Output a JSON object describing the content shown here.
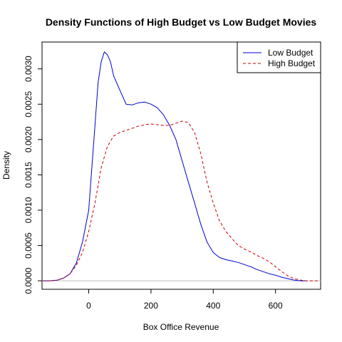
{
  "chart_data": {
    "type": "line",
    "title": "Density Functions of High Budget vs Low Budget Movies",
    "xlabel": "Box Office Revenue",
    "ylabel": "Density",
    "xlim": [
      -150,
      745
    ],
    "ylim": [
      -0.00012,
      0.00338
    ],
    "x_ticks": [
      0,
      200,
      400,
      600
    ],
    "x_tick_labels": [
      "0",
      "200",
      "400",
      "600"
    ],
    "y_ticks": [
      0.0,
      0.0005,
      0.001,
      0.0015,
      0.002,
      0.0025,
      0.003
    ],
    "y_tick_labels": [
      "0.0000",
      "0.0005",
      "0.0010",
      "0.0015",
      "0.0020",
      "0.0025",
      "0.0030"
    ],
    "grid": false,
    "baseline": 0,
    "legend_position": "top-right",
    "series": [
      {
        "name": "Low Budget",
        "color": "#0000cc",
        "dash": "solid",
        "points": [
          [
            -148,
            0.0
          ],
          [
            -125,
            0.0
          ],
          [
            -100,
            1e-05
          ],
          [
            -80,
            4e-05
          ],
          [
            -60,
            0.0001
          ],
          [
            -40,
            0.00025
          ],
          [
            -20,
            0.00055
          ],
          [
            0,
            0.001
          ],
          [
            10,
            0.0016
          ],
          [
            20,
            0.0022
          ],
          [
            30,
            0.0028
          ],
          [
            40,
            0.0031
          ],
          [
            50,
            0.00324
          ],
          [
            60,
            0.0032
          ],
          [
            70,
            0.0031
          ],
          [
            80,
            0.0029
          ],
          [
            100,
            0.0027
          ],
          [
            120,
            0.0025
          ],
          [
            140,
            0.00249
          ],
          [
            160,
            0.00252
          ],
          [
            180,
            0.00253
          ],
          [
            200,
            0.0025
          ],
          [
            220,
            0.00245
          ],
          [
            240,
            0.00235
          ],
          [
            260,
            0.0022
          ],
          [
            280,
            0.002
          ],
          [
            300,
            0.0017
          ],
          [
            320,
            0.0014
          ],
          [
            340,
            0.0011
          ],
          [
            360,
            0.0008
          ],
          [
            380,
            0.00055
          ],
          [
            400,
            0.0004
          ],
          [
            420,
            0.00033
          ],
          [
            440,
            0.0003
          ],
          [
            460,
            0.00028
          ],
          [
            480,
            0.00026
          ],
          [
            500,
            0.00023
          ],
          [
            520,
            0.0002
          ],
          [
            540,
            0.00016
          ],
          [
            560,
            0.00013
          ],
          [
            580,
            0.0001
          ],
          [
            600,
            8e-05
          ],
          [
            620,
            5e-05
          ],
          [
            640,
            3e-05
          ],
          [
            660,
            1e-05
          ],
          [
            680,
            0.0
          ],
          [
            700,
            0.0
          ]
        ]
      },
      {
        "name": "High Budget",
        "color": "#cc0000",
        "dash": "dashed",
        "points": [
          [
            -148,
            0.0
          ],
          [
            -125,
            0.0
          ],
          [
            -100,
            1e-05
          ],
          [
            -80,
            4e-05
          ],
          [
            -60,
            0.0001
          ],
          [
            -40,
            0.00022
          ],
          [
            -20,
            0.0004
          ],
          [
            0,
            0.0007
          ],
          [
            20,
            0.0011
          ],
          [
            40,
            0.0016
          ],
          [
            60,
            0.0019
          ],
          [
            80,
            0.00205
          ],
          [
            100,
            0.0021
          ],
          [
            120,
            0.00213
          ],
          [
            140,
            0.00216
          ],
          [
            160,
            0.00219
          ],
          [
            180,
            0.00221
          ],
          [
            200,
            0.00222
          ],
          [
            220,
            0.00221
          ],
          [
            240,
            0.0022
          ],
          [
            260,
            0.0022
          ],
          [
            280,
            0.00223
          ],
          [
            300,
            0.00226
          ],
          [
            320,
            0.00224
          ],
          [
            340,
            0.0021
          ],
          [
            360,
            0.0018
          ],
          [
            380,
            0.0014
          ],
          [
            400,
            0.0011
          ],
          [
            420,
            0.00085
          ],
          [
            440,
            0.0007
          ],
          [
            460,
            0.0006
          ],
          [
            480,
            0.0005
          ],
          [
            500,
            0.00045
          ],
          [
            520,
            0.00041
          ],
          [
            540,
            0.00036
          ],
          [
            560,
            0.00032
          ],
          [
            580,
            0.00027
          ],
          [
            600,
            0.0002
          ],
          [
            620,
            0.00013
          ],
          [
            640,
            7e-05
          ],
          [
            660,
            3e-05
          ],
          [
            680,
            1e-05
          ],
          [
            700,
            0.0
          ],
          [
            720,
            0.0
          ],
          [
            740,
            0.0
          ]
        ]
      }
    ]
  }
}
